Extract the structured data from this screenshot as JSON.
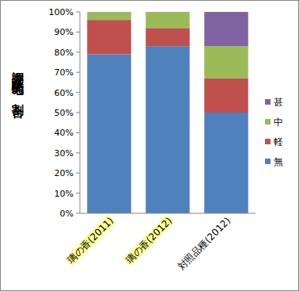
{
  "chart_data": {
    "type": "bar",
    "stacked": true,
    "y_label": "調査試験地の割合",
    "categories": [
      "璃の香(2011)",
      "璃の香(2012)",
      "対照品種(2012)"
    ],
    "series": [
      {
        "name": "無",
        "color": "#4f81bd",
        "values": [
          79,
          83,
          50
        ]
      },
      {
        "name": "軽",
        "color": "#c0504d",
        "values": [
          17,
          9,
          17
        ]
      },
      {
        "name": "中",
        "color": "#9bbb59",
        "values": [
          4,
          8,
          16
        ]
      },
      {
        "name": "甚",
        "color": "#8064a2",
        "values": [
          0,
          0,
          17
        ]
      }
    ],
    "ylim": [
      0,
      100
    ],
    "yticks": [
      {
        "value": 0,
        "label": "0%"
      },
      {
        "value": 10,
        "label": "10%"
      },
      {
        "value": 20,
        "label": "20%"
      },
      {
        "value": 30,
        "label": "30%"
      },
      {
        "value": 40,
        "label": "40%"
      },
      {
        "value": 50,
        "label": "50%"
      },
      {
        "value": 60,
        "label": "60%"
      },
      {
        "value": 70,
        "label": "70%"
      },
      {
        "value": 80,
        "label": "80%"
      },
      {
        "value": 90,
        "label": "90%"
      },
      {
        "value": 100,
        "label": "100%"
      }
    ],
    "grid": false,
    "legend": "right"
  }
}
